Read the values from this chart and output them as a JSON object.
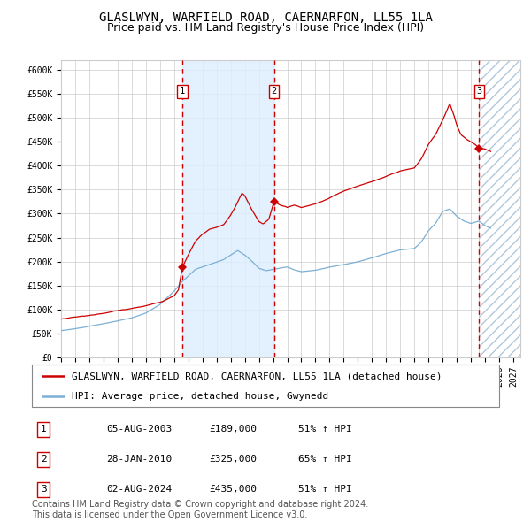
{
  "title": "GLASLWYN, WARFIELD ROAD, CAERNARFON, LL55 1LA",
  "subtitle": "Price paid vs. HM Land Registry's House Price Index (HPI)",
  "ylim": [
    0,
    620000
  ],
  "yticks": [
    0,
    50000,
    100000,
    150000,
    200000,
    250000,
    300000,
    350000,
    400000,
    450000,
    500000,
    550000,
    600000
  ],
  "ytick_labels": [
    "£0",
    "£50K",
    "£100K",
    "£150K",
    "£200K",
    "£250K",
    "£300K",
    "£350K",
    "£400K",
    "£450K",
    "£500K",
    "£550K",
    "£600K"
  ],
  "xlim_start": 1995.0,
  "xlim_end": 2027.5,
  "sale_color": "#cc0000",
  "hpi_color": "#7bafd4",
  "background_color": "#ffffff",
  "plot_bg_color": "#ffffff",
  "grid_color": "#cccccc",
  "shade_color": "#ddeeff",
  "hatch_color": "#b0c8dc",
  "legend_label_sale": "GLASLWYN, WARFIELD ROAD, CAERNARFON, LL55 1LA (detached house)",
  "legend_label_hpi": "HPI: Average price, detached house, Gwynedd",
  "transaction_labels": [
    "1",
    "2",
    "3"
  ],
  "transaction_dates": [
    2003.58,
    2010.07,
    2024.58
  ],
  "transaction_prices": [
    189000,
    325000,
    435000
  ],
  "transaction_display": [
    {
      "num": "1",
      "date": "05-AUG-2003",
      "price": "£189,000",
      "pct": "51% ↑ HPI"
    },
    {
      "num": "2",
      "date": "28-JAN-2010",
      "price": "£325,000",
      "pct": "65% ↑ HPI"
    },
    {
      "num": "3",
      "date": "02-AUG-2024",
      "price": "£435,000",
      "pct": "51% ↑ HPI"
    }
  ],
  "shade_x1": 2003.58,
  "shade_x2": 2010.07,
  "hatch_x1": 2024.58,
  "hatch_x2": 2027.5,
  "footer": "Contains HM Land Registry data © Crown copyright and database right 2024.\nThis data is licensed under the Open Government Licence v3.0.",
  "title_fontsize": 10,
  "subtitle_fontsize": 9,
  "tick_fontsize": 7,
  "legend_fontsize": 8,
  "footer_fontsize": 7
}
